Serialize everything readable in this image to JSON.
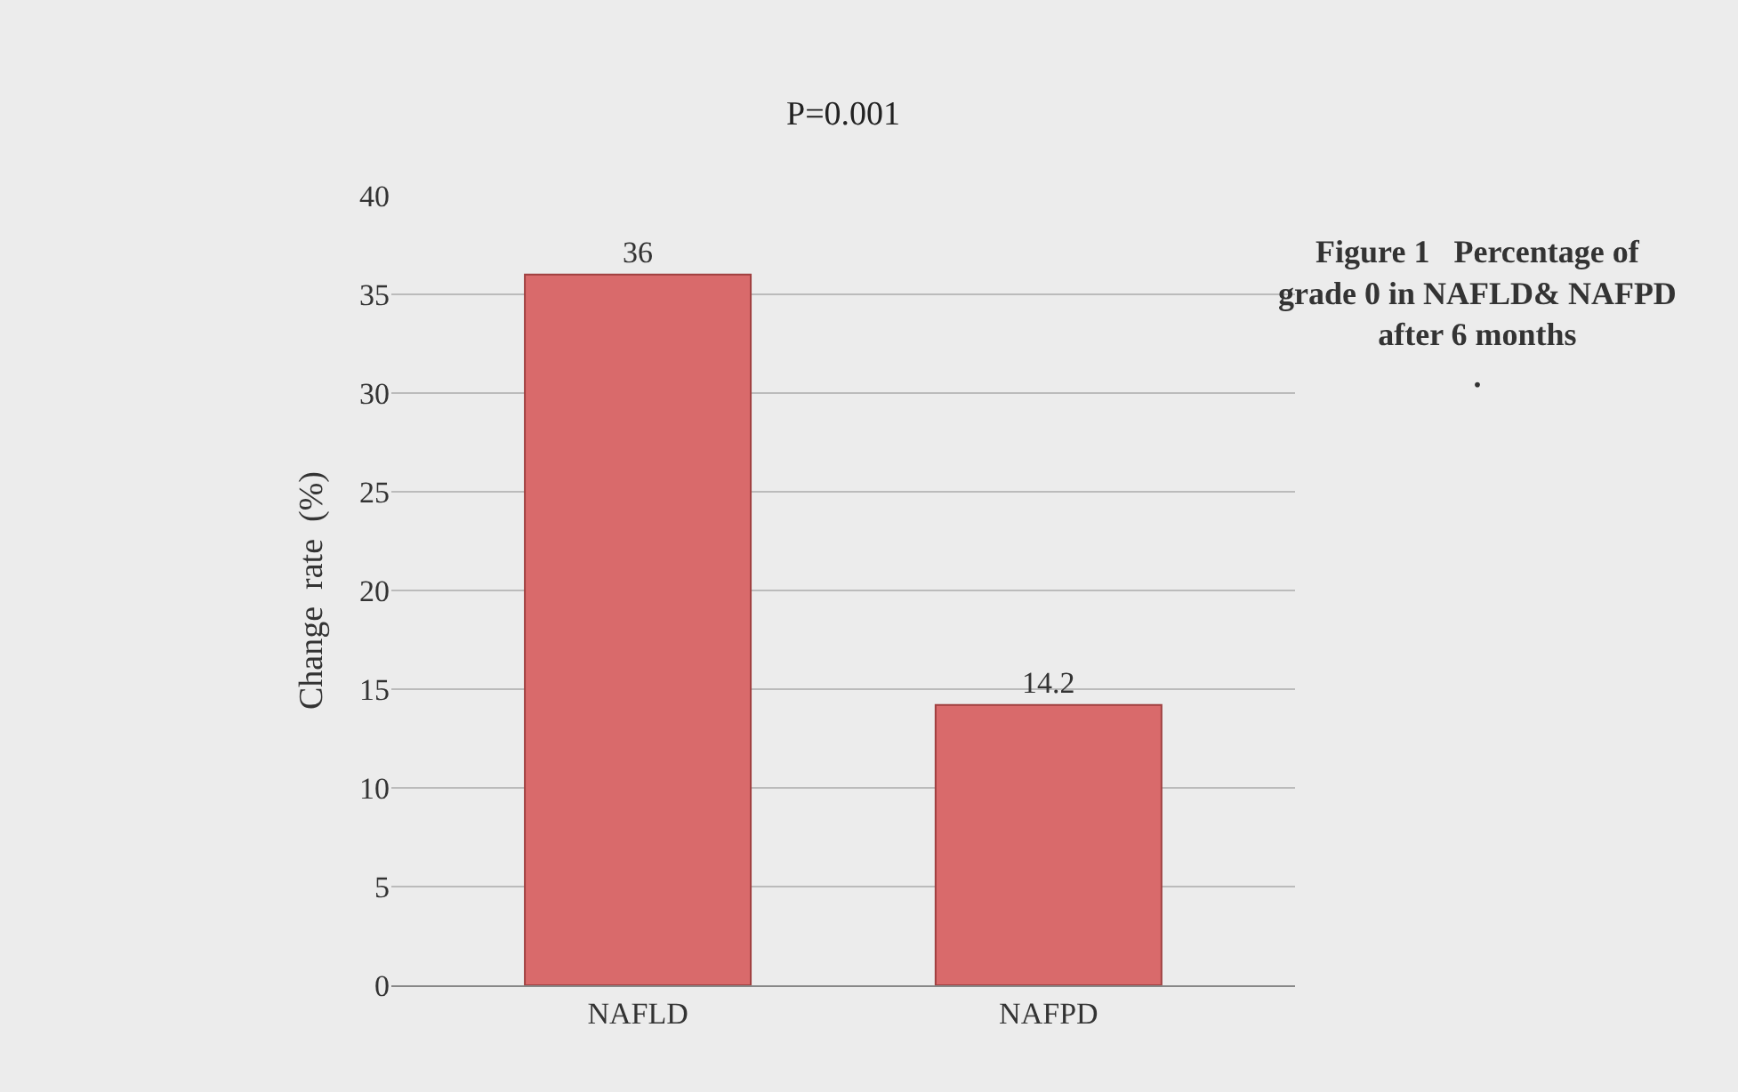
{
  "chart_data": {
    "type": "bar",
    "title": "Figure 1   Percentage of\ngrade 0 in NAFLD& NAFPD\nafter 6 months\n.",
    "ylabel": "Change  rate  (%)",
    "categories": [
      "NAFLD",
      "NAFPD"
    ],
    "values": [
      36,
      14.2
    ],
    "color": "#d96a6b",
    "ylim": [
      0,
      40
    ],
    "yticks": [
      0,
      5,
      10,
      15,
      20,
      25,
      30,
      35,
      40
    ],
    "grid": "y",
    "data_labels": true,
    "legend": false,
    "annotations": [
      "P=0.001"
    ]
  }
}
